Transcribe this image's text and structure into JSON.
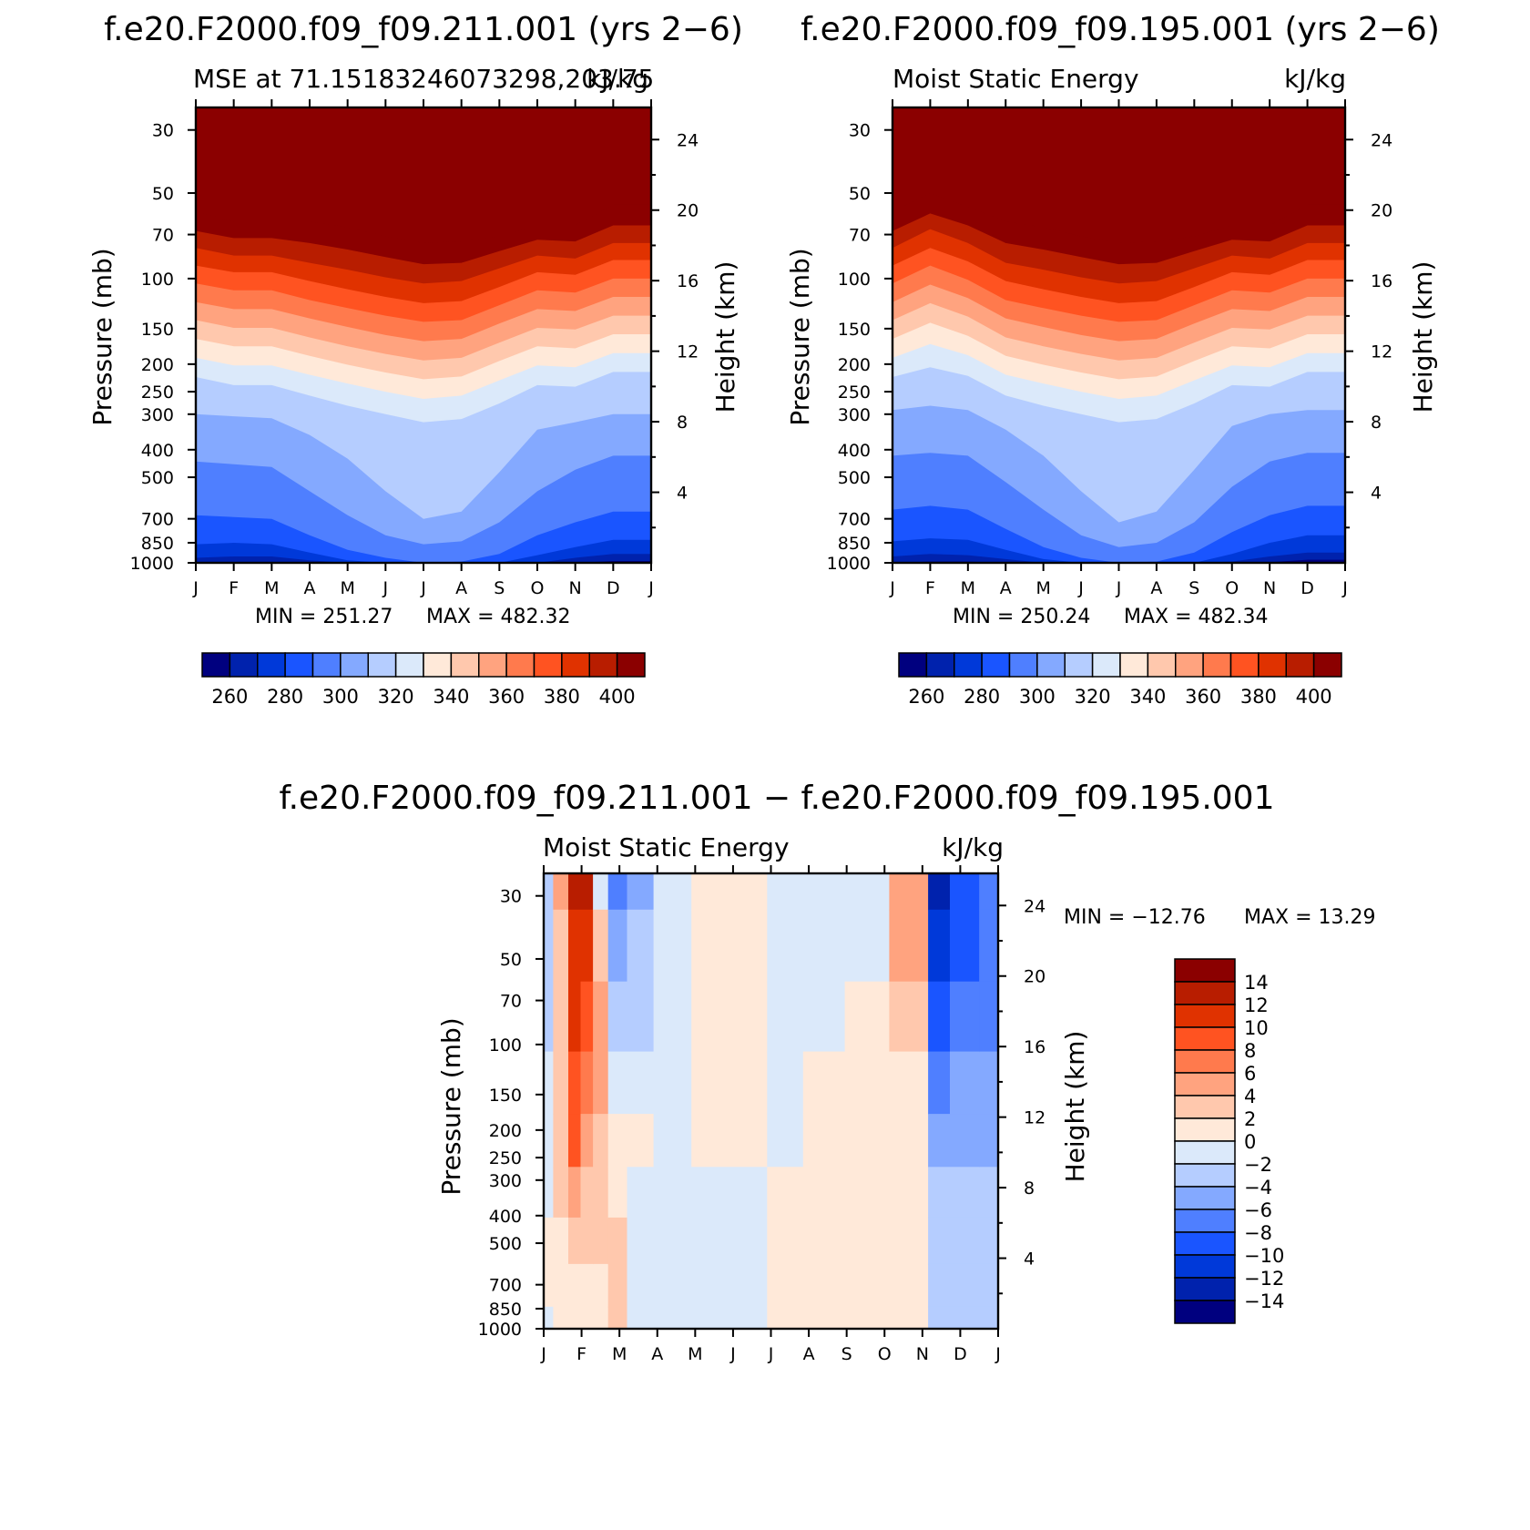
{
  "chart_data": [
    {
      "id": "top-left",
      "type": "heatmap",
      "title": "f.e20.F2000.f09_f09.211.001 (yrs 2−6)",
      "subtitle_left": "MSE at 71.15183246073298,203.75",
      "subtitle_right": "kJ/kg",
      "ylabel": "Pressure (mb)",
      "ylabel_right": "Height (km)",
      "x_ticks": [
        "J",
        "F",
        "M",
        "A",
        "M",
        "J",
        "J",
        "A",
        "S",
        "O",
        "N",
        "D",
        "J"
      ],
      "pressure_ticks": [
        30,
        50,
        70,
        100,
        150,
        200,
        250,
        300,
        400,
        500,
        700,
        850,
        1000
      ],
      "height_ticks": [
        24,
        20,
        16,
        12,
        8,
        4
      ],
      "min_label": "MIN = 251.27",
      "max_label": "MAX = 482.32",
      "min": 251.27,
      "max": 482.32,
      "colorbar_ticks": [
        260,
        280,
        300,
        320,
        340,
        360,
        380,
        400
      ],
      "iso_pressures": {
        "410": [
          58,
          63,
          63,
          63,
          66,
          71,
          75,
          74,
          71,
          65,
          65,
          55,
          55
        ],
        "400": [
          68,
          72,
          72,
          75,
          79,
          84,
          89,
          88,
          80,
          73,
          74,
          65,
          65
        ],
        "390": [
          78,
          83,
          83,
          88,
          93,
          99,
          104,
          102,
          92,
          83,
          85,
          75,
          75
        ],
        "380": [
          90,
          95,
          95,
          102,
          109,
          116,
          122,
          120,
          107,
          95,
          97,
          86,
          86
        ],
        "370": [
          104,
          110,
          110,
          119,
          127,
          135,
          142,
          140,
          124,
          110,
          112,
          100,
          100
        ],
        "360": [
          121,
          128,
          128,
          138,
          148,
          158,
          166,
          163,
          144,
          128,
          130,
          116,
          116
        ],
        "350": [
          140,
          149,
          149,
          161,
          173,
          184,
          194,
          190,
          168,
          149,
          151,
          135,
          135
        ],
        "340": [
          163,
          173,
          173,
          187,
          201,
          214,
          226,
          221,
          195,
          173,
          176,
          157,
          157
        ],
        "330": [
          190,
          202,
          202,
          218,
          234,
          250,
          265,
          258,
          228,
          202,
          205,
          183,
          183
        ],
        "320": [
          222,
          237,
          237,
          258,
          280,
          300,
          320,
          312,
          275,
          237,
          240,
          213,
          213
        ],
        "310": [
          300,
          305,
          310,
          355,
          430,
          560,
          700,
          660,
          480,
          340,
          320,
          300,
          300
        ],
        "300": [
          440,
          450,
          460,
          560,
          680,
          800,
          860,
          840,
          720,
          560,
          470,
          420,
          420
        ],
        "290": [
          680,
          690,
          700,
          800,
          900,
          960,
          1000,
          990,
          930,
          800,
          720,
          660,
          660
        ],
        "280": [
          860,
          850,
          860,
          920,
          980,
          1000,
          1000,
          1000,
          1000,
          940,
          880,
          830,
          830
        ],
        "270": [
          960,
          950,
          950,
          980,
          1000,
          1000,
          1000,
          1000,
          1000,
          1000,
          960,
          930,
          930
        ],
        "260": [
          1000,
          995,
          995,
          1000,
          1000,
          1000,
          1000,
          1000,
          1000,
          1000,
          1000,
          985,
          985
        ]
      }
    },
    {
      "id": "top-right",
      "type": "heatmap",
      "title": "f.e20.F2000.f09_f09.195.001 (yrs 2−6)",
      "subtitle_left": "Moist Static Energy",
      "subtitle_right": "kJ/kg",
      "ylabel": "Pressure (mb)",
      "ylabel_right": "Height (km)",
      "x_ticks": [
        "J",
        "F",
        "M",
        "A",
        "M",
        "J",
        "J",
        "A",
        "S",
        "O",
        "N",
        "D",
        "J"
      ],
      "pressure_ticks": [
        30,
        50,
        70,
        100,
        150,
        200,
        250,
        300,
        400,
        500,
        700,
        850,
        1000
      ],
      "height_ticks": [
        24,
        20,
        16,
        12,
        8,
        4
      ],
      "min_label": "MIN = 250.24",
      "max_label": "MAX = 482.34",
      "min": 250.24,
      "max": 482.34,
      "colorbar_ticks": [
        260,
        280,
        300,
        320,
        340,
        360,
        380,
        400
      ],
      "iso_pressures": {
        "410": [
          58,
          50,
          56,
          63,
          66,
          71,
          75,
          74,
          71,
          65,
          65,
          55,
          55
        ],
        "400": [
          68,
          59,
          65,
          75,
          79,
          84,
          89,
          88,
          80,
          73,
          74,
          65,
          65
        ],
        "390": [
          78,
          67,
          75,
          88,
          93,
          99,
          104,
          102,
          92,
          83,
          85,
          75,
          75
        ],
        "380": [
          90,
          78,
          87,
          102,
          109,
          116,
          122,
          120,
          107,
          95,
          97,
          86,
          86
        ],
        "370": [
          104,
          90,
          101,
          119,
          127,
          135,
          142,
          140,
          124,
          110,
          112,
          100,
          100
        ],
        "360": [
          121,
          105,
          117,
          138,
          148,
          158,
          166,
          163,
          144,
          128,
          130,
          116,
          116
        ],
        "350": [
          140,
          122,
          136,
          161,
          173,
          184,
          194,
          190,
          168,
          149,
          151,
          135,
          135
        ],
        "340": [
          163,
          143,
          159,
          187,
          201,
          214,
          226,
          221,
          195,
          173,
          176,
          157,
          157
        ],
        "330": [
          190,
          170,
          186,
          218,
          234,
          250,
          265,
          258,
          228,
          202,
          205,
          183,
          183
        ],
        "320": [
          222,
          205,
          220,
          258,
          280,
          300,
          320,
          312,
          275,
          237,
          240,
          213,
          213
        ],
        "310": [
          290,
          280,
          290,
          340,
          420,
          560,
          720,
          660,
          470,
          330,
          300,
          290,
          290
        ],
        "300": [
          420,
          410,
          420,
          520,
          650,
          800,
          880,
          850,
          720,
          540,
          440,
          410,
          410
        ],
        "290": [
          650,
          630,
          650,
          760,
          880,
          960,
          1000,
          990,
          920,
          780,
          680,
          630,
          630
        ],
        "280": [
          840,
          820,
          830,
          900,
          970,
          1000,
          1000,
          1000,
          1000,
          930,
          850,
          800,
          800
        ],
        "270": [
          950,
          930,
          940,
          970,
          1000,
          1000,
          1000,
          1000,
          1000,
          990,
          950,
          920,
          920
        ],
        "260": [
          1000,
          990,
          990,
          1000,
          1000,
          1000,
          1000,
          1000,
          1000,
          1000,
          995,
          975,
          975
        ]
      }
    },
    {
      "id": "difference",
      "type": "heatmap",
      "title": "f.e20.F2000.f09_f09.211.001 − f.e20.F2000.f09_f09.195.001",
      "subtitle_left": "Moist Static Energy",
      "subtitle_right": "kJ/kg",
      "ylabel": "Pressure (mb)",
      "ylabel_right": "Height (km)",
      "x_ticks": [
        "J",
        "F",
        "M",
        "A",
        "M",
        "J",
        "J",
        "A",
        "S",
        "O",
        "N",
        "D",
        "J"
      ],
      "pressure_ticks": [
        30,
        50,
        70,
        100,
        150,
        200,
        250,
        300,
        400,
        500,
        700,
        850,
        1000
      ],
      "height_ticks": [
        24,
        20,
        16,
        12,
        8,
        4
      ],
      "min_label": "MIN = −12.76",
      "max_label": "MAX = 13.29",
      "min": -12.76,
      "max": 13.29,
      "colorbar_ticks": [
        "14",
        "12",
        "10",
        "8",
        "6",
        "4",
        "2",
        "0",
        "−2",
        "−4",
        "−6",
        "−8",
        "−10",
        "−12",
        "−14"
      ],
      "column_profiles": [
        [
          -2,
          -2,
          -2,
          -1,
          -1,
          -1,
          0,
          0,
          -1
        ],
        [
          4,
          3,
          3,
          2,
          2,
          2,
          1,
          1,
          0
        ],
        [
          12,
          11,
          10,
          9,
          8,
          5,
          3,
          1,
          1
        ],
        [
          13,
          11,
          9,
          7,
          5,
          3,
          2,
          1,
          1
        ],
        [
          -1,
          2,
          4,
          4,
          3,
          3,
          2,
          1,
          1
        ],
        [
          -7,
          -5,
          -3,
          -1,
          1,
          1,
          2,
          2,
          3
        ],
        [
          -4,
          -3,
          -2,
          -1,
          0,
          -1,
          -1,
          -1,
          -1
        ],
        [
          -1,
          -1,
          -1,
          -1,
          -1,
          -1,
          -1,
          -1,
          -1
        ],
        [
          1,
          1,
          1,
          1,
          1,
          -1,
          -1,
          -1,
          -1
        ],
        [
          1,
          1,
          1,
          1,
          0,
          -1,
          -1,
          -1,
          -1
        ],
        [
          -1,
          -1,
          -1,
          -1,
          -1,
          1,
          1,
          1,
          1
        ],
        [
          -1,
          -1,
          -1,
          1,
          1,
          1,
          1,
          1,
          1
        ],
        [
          -1,
          -1,
          1,
          1,
          1,
          1,
          1,
          1,
          1
        ],
        [
          5,
          4,
          3,
          1,
          1,
          1,
          1,
          1,
          1
        ],
        [
          -12,
          -10,
          -8,
          -6,
          -4,
          -3,
          -2,
          -2,
          -3
        ],
        [
          -9,
          -8,
          -7,
          -5,
          -4,
          -3,
          -2,
          -2,
          -2
        ],
        [
          -6,
          -6,
          -6,
          -5,
          -4,
          -3,
          -2,
          -2,
          -3
        ]
      ],
      "column_months": [
        0.05,
        0.45,
        0.85,
        1.1,
        1.5,
        1.9,
        2.5,
        3.3,
        4.5,
        5.6,
        6.2,
        7.5,
        8.4,
        9.85,
        10.45,
        11.0,
        12.0
      ],
      "profile_pressures": [
        25,
        45,
        80,
        140,
        220,
        330,
        500,
        700,
        1000
      ]
    }
  ]
}
